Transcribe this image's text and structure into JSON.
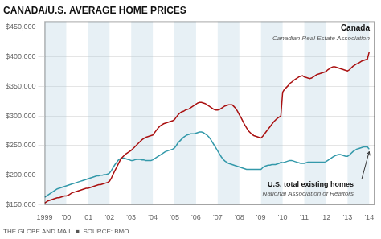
{
  "chart_data": {
    "type": "line",
    "title": "CANADA/U.S. AVERAGE HOME PRICES",
    "footer": "THE GLOBE AND MAIL  ■  SOURCE: BMO",
    "x": [
      1999.0,
      1999.083,
      1999.167,
      1999.25,
      1999.333,
      1999.417,
      1999.5,
      1999.583,
      1999.667,
      1999.75,
      1999.833,
      1999.917,
      2000.0,
      2000.083,
      2000.167,
      2000.25,
      2000.333,
      2000.417,
      2000.5,
      2000.583,
      2000.667,
      2000.75,
      2000.833,
      2000.917,
      2001.0,
      2001.083,
      2001.167,
      2001.25,
      2001.333,
      2001.417,
      2001.5,
      2001.583,
      2001.667,
      2001.75,
      2001.833,
      2001.917,
      2002.0,
      2002.083,
      2002.167,
      2002.25,
      2002.333,
      2002.417,
      2002.5,
      2002.583,
      2002.667,
      2002.75,
      2002.833,
      2002.917,
      2003.0,
      2003.083,
      2003.167,
      2003.25,
      2003.333,
      2003.417,
      2003.5,
      2003.583,
      2003.667,
      2003.75,
      2003.833,
      2003.917,
      2004.0,
      2004.083,
      2004.167,
      2004.25,
      2004.333,
      2004.417,
      2004.5,
      2004.583,
      2004.667,
      2004.75,
      2004.833,
      2004.917,
      2005.0,
      2005.083,
      2005.167,
      2005.25,
      2005.333,
      2005.417,
      2005.5,
      2005.583,
      2005.667,
      2005.75,
      2005.833,
      2005.917,
      2006.0,
      2006.083,
      2006.167,
      2006.25,
      2006.333,
      2006.417,
      2006.5,
      2006.583,
      2006.667,
      2006.75,
      2006.833,
      2006.917,
      2007.0,
      2007.083,
      2007.167,
      2007.25,
      2007.333,
      2007.417,
      2007.5,
      2007.583,
      2007.667,
      2007.75,
      2007.833,
      2007.917,
      2008.0,
      2008.083,
      2008.167,
      2008.25,
      2008.333,
      2008.417,
      2008.5,
      2008.583,
      2008.667,
      2008.75,
      2008.833,
      2008.917,
      2009.0,
      2009.083,
      2009.167,
      2009.25,
      2009.333,
      2009.417,
      2009.5,
      2009.583,
      2009.667,
      2009.75,
      2009.833,
      2009.917,
      2010.0,
      2010.083,
      2010.167,
      2010.25,
      2010.333,
      2010.417,
      2010.5,
      2010.583,
      2010.667,
      2010.75,
      2010.833,
      2010.917,
      2011.0,
      2011.083,
      2011.167,
      2011.25,
      2011.333,
      2011.417,
      2011.5,
      2011.583,
      2011.667,
      2011.75,
      2011.833,
      2011.917,
      2012.0,
      2012.083,
      2012.167,
      2012.25,
      2012.333,
      2012.417,
      2012.5,
      2012.583,
      2012.667,
      2012.75,
      2012.833,
      2012.917,
      2013.0,
      2013.083,
      2013.167,
      2013.25,
      2013.333,
      2013.417,
      2013.5,
      2013.583,
      2013.667,
      2013.75,
      2013.833,
      2013.917,
      2014.0
    ],
    "series": [
      {
        "name": "Canada",
        "color": "#aa1111",
        "values": [
          153000,
          155000,
          157000,
          158000,
          159000,
          160000,
          161000,
          162000,
          162000,
          163000,
          164000,
          165000,
          165000,
          166000,
          168000,
          170000,
          171000,
          172000,
          173000,
          174000,
          175000,
          176000,
          177000,
          178000,
          178000,
          179000,
          180000,
          181000,
          182000,
          183000,
          184000,
          184000,
          185000,
          186000,
          187000,
          188000,
          190000,
          195000,
          202000,
          208000,
          214000,
          220000,
          226000,
          230000,
          233000,
          236000,
          238000,
          240000,
          242000,
          245000,
          248000,
          251000,
          254000,
          257000,
          260000,
          262000,
          264000,
          265000,
          266000,
          267000,
          268000,
          272000,
          276000,
          280000,
          283000,
          285000,
          287000,
          288000,
          289000,
          290000,
          291000,
          292000,
          294000,
          298000,
          302000,
          305000,
          307000,
          308000,
          310000,
          311000,
          312000,
          314000,
          316000,
          318000,
          320000,
          322000,
          323000,
          323000,
          322000,
          321000,
          319000,
          317000,
          315000,
          313000,
          311000,
          310000,
          310000,
          311000,
          313000,
          315000,
          317000,
          318000,
          319000,
          319000,
          319000,
          316000,
          313000,
          308000,
          302000,
          297000,
          291000,
          285000,
          280000,
          275000,
          272000,
          269000,
          267000,
          266000,
          265000,
          264000,
          263000,
          266000,
          270000,
          274000,
          278000,
          282000,
          286000,
          290000,
          293000,
          296000,
          298000,
          300000,
          340000,
          345000,
          348000,
          351000,
          355000,
          357000,
          360000,
          362000,
          364000,
          366000,
          367000,
          368000,
          366000,
          365000,
          364000,
          363000,
          364000,
          366000,
          368000,
          370000,
          371000,
          372000,
          373000,
          374000,
          375000,
          378000,
          380000,
          382000,
          383000,
          383000,
          382000,
          381000,
          380000,
          379000,
          378000,
          377000,
          376000,
          378000,
          381000,
          384000,
          386000,
          388000,
          389000,
          391000,
          393000,
          394000,
          395000,
          396000,
          408000
        ]
      },
      {
        "name": "U.S. total existing homes",
        "color": "#3399aa",
        "values": [
          163000,
          165000,
          167000,
          169000,
          171000,
          173000,
          175000,
          177000,
          178000,
          179000,
          180000,
          181000,
          182000,
          183000,
          184000,
          185000,
          186000,
          187000,
          188000,
          189000,
          190000,
          191000,
          192000,
          193000,
          194000,
          195000,
          196000,
          197000,
          198000,
          199000,
          199000,
          200000,
          200000,
          201000,
          201000,
          202000,
          204000,
          208000,
          213000,
          218000,
          222000,
          226000,
          228000,
          229000,
          229000,
          228000,
          227000,
          226000,
          225000,
          225000,
          226000,
          227000,
          227000,
          227000,
          226000,
          226000,
          225000,
          225000,
          225000,
          225000,
          226000,
          228000,
          230000,
          232000,
          234000,
          236000,
          238000,
          240000,
          241000,
          242000,
          243000,
          244000,
          246000,
          250000,
          255000,
          258000,
          261000,
          264000,
          266000,
          268000,
          269000,
          270000,
          270000,
          270000,
          271000,
          272000,
          273000,
          273000,
          272000,
          270000,
          268000,
          265000,
          261000,
          256000,
          251000,
          246000,
          241000,
          236000,
          231000,
          227000,
          224000,
          222000,
          220000,
          219000,
          218000,
          217000,
          216000,
          215000,
          214000,
          213000,
          212000,
          211000,
          210000,
          210000,
          210000,
          210000,
          210000,
          210000,
          210000,
          210000,
          210000,
          213000,
          215000,
          216000,
          217000,
          217000,
          218000,
          218000,
          218000,
          219000,
          220000,
          222000,
          221000,
          222000,
          223000,
          224000,
          225000,
          225000,
          224000,
          223000,
          222000,
          221000,
          220000,
          220000,
          220000,
          221000,
          222000,
          222000,
          222000,
          222000,
          222000,
          222000,
          222000,
          222000,
          222000,
          222000,
          223000,
          225000,
          227000,
          229000,
          231000,
          233000,
          234000,
          235000,
          235000,
          234000,
          233000,
          232000,
          232000,
          234000,
          237000,
          240000,
          242000,
          244000,
          245000,
          246000,
          247000,
          248000,
          248000,
          248000,
          244000
        ]
      }
    ],
    "annotations": [
      {
        "series": "Canada",
        "text": "Canadian Real Estate Association"
      },
      {
        "series": "U.S. total existing homes",
        "text": "National Association of Realtors"
      }
    ],
    "xlim": [
      1999,
      2014.25
    ],
    "xticks": [
      1999,
      {
        "value": 2000,
        "label": "'00"
      },
      {
        "value": 2001,
        "label": "'01"
      },
      {
        "value": 2002,
        "label": "'02"
      },
      {
        "value": 2003,
        "label": "'03"
      },
      {
        "value": 2004,
        "label": "'04"
      },
      {
        "value": 2005,
        "label": "'05"
      },
      {
        "value": 2006,
        "label": "'06"
      },
      {
        "value": 2007,
        "label": "'07"
      },
      {
        "value": 2008,
        "label": "'08"
      },
      {
        "value": 2009,
        "label": "'09"
      },
      {
        "value": 2010,
        "label": "'10"
      },
      {
        "value": 2011,
        "label": "'11"
      },
      {
        "value": 2012,
        "label": "'12"
      },
      {
        "value": 2013,
        "label": "'13"
      },
      {
        "value": 2014,
        "label": "'14"
      }
    ],
    "ylim": [
      150000,
      460000
    ],
    "yticks": [
      {
        "value": 150000,
        "label": "$150,000"
      },
      {
        "value": 200000,
        "label": "$200,000"
      },
      {
        "value": 250000,
        "label": "$250,000"
      },
      {
        "value": 300000,
        "label": "$300,000"
      },
      {
        "value": 350000,
        "label": "$350,000"
      },
      {
        "value": 400000,
        "label": "$400,000"
      },
      {
        "value": 450000,
        "label": "$450,000"
      }
    ],
    "grid": "y"
  }
}
